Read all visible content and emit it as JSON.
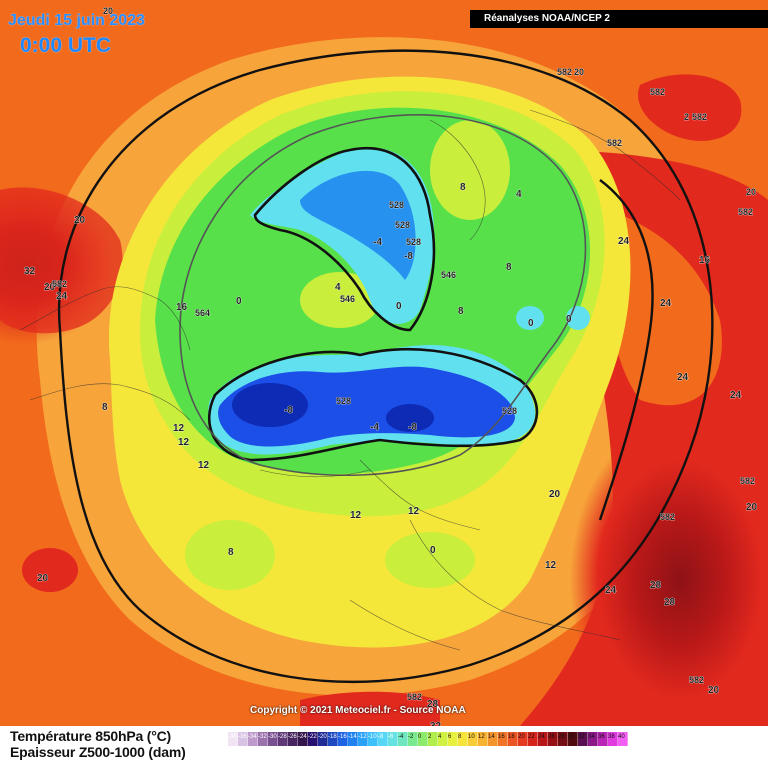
{
  "header": {
    "date": "Jeudi 15 juin 2023",
    "time": "0:00 UTC",
    "source": "Réanalyses NOAA/NCEP 2"
  },
  "footer": {
    "copyright": "Copyright © 2021 Meteociel.fr - Source NOAA",
    "legend_temperature": "Température 850hPa (°C)",
    "legend_thickness": "Epaisseur Z500-1000 (dam)"
  },
  "legend_scale": {
    "tick_labels": [
      "-40",
      "-38",
      "-36",
      "-34",
      "-32",
      "-30",
      "-28",
      "-26",
      "-24",
      "-22",
      "-20",
      "-18",
      "-16",
      "-14",
      "-12",
      "-10",
      "-8",
      "-6",
      "-4",
      "-2",
      "0",
      "2",
      "4",
      "6",
      "8",
      "10",
      "12",
      "14",
      "16",
      "18",
      "20",
      "22",
      "24",
      "26",
      "28",
      "30",
      "32",
      "34",
      "36",
      "38",
      "40"
    ]
  },
  "map_labels": {
    "n20_top": "20",
    "n582_top": "582",
    "n20_top_b": "20",
    "n582_ne": "582",
    "n2_582": "2",
    "n582_ne2": "582",
    "n582_ne3": "582",
    "n20_east": "20",
    "n582_east": "582",
    "n24_ne": "24",
    "n16_ne": "16",
    "n24_e1": "24",
    "n24_e2": "24",
    "n24_e3": "24",
    "n20_w": "20",
    "n32_w": "32",
    "n20_w2": "20",
    "n582_w": "582",
    "n24_w": "24",
    "n16_w": "16",
    "n564_w": "564",
    "n0_w": "0",
    "n8_w": "8",
    "n528_a": "528",
    "n528_b": "528",
    "n528_c": "528",
    "nm4_a": "-4",
    "nm8_a": "-8",
    "n546_a": "546",
    "n8_north": "8",
    "n4_north": "4",
    "n8_mid": "8",
    "n4_mid": "4",
    "n546_mid": "546",
    "n0_mid": "0",
    "n546_b": "546",
    "n8_c": "8",
    "n0_r": "0",
    "n0_r2": "0",
    "nm8_b": "-8",
    "n528_d": "528",
    "nm4_b": "-4",
    "nm8_c": "-8",
    "n528_e": "528",
    "n12_a": "12",
    "n12_b": "12",
    "n12_c": "12",
    "n12_d": "12",
    "n12_e": "12",
    "n12_f": "12",
    "n0_s": "0",
    "n8_s": "8",
    "n20_sw": "20",
    "n20_se": "20",
    "n582_se": "582",
    "n582_se2": "582",
    "n20_se2": "20",
    "n24_se": "24",
    "n28_se": "28",
    "n28_se2": "28",
    "n582_bottom": "582",
    "n28_bottom": "28",
    "n32_bottom": "32",
    "n582_br": "582",
    "n20_br": "20"
  },
  "colors": {
    "title": "#2a8cff",
    "deep_red": "#8e1216",
    "red": "#e2291e",
    "orange": "#f26a1b",
    "orange_light": "#f7a43a",
    "yellow": "#f5e73a",
    "yellow_green": "#c9ee3c",
    "green": "#58e04b",
    "cyan": "#61e1ef",
    "blue": "#1c4fe7",
    "dark_blue": "#0d2bb4"
  },
  "legend_colors": [
    "#ffffff",
    "#f0e4f4",
    "#d8c3e4",
    "#bd9ccd",
    "#9a73ad",
    "#7a5190",
    "#5e3877",
    "#47265f",
    "#35164b",
    "#28106f",
    "#1f2c96",
    "#1d48bf",
    "#1d63e3",
    "#1f82f0",
    "#2aa2f7",
    "#3ec1fb",
    "#57d7f7",
    "#66e2e3",
    "#6ee7c0",
    "#7ae88e",
    "#8eea6a",
    "#b1ed4d",
    "#d1f142",
    "#e7f03e",
    "#f6e33b",
    "#f8cc38",
    "#f7b232",
    "#f4942c",
    "#f07528",
    "#ec5523",
    "#e43a1f",
    "#d6241b",
    "#b91619",
    "#951116",
    "#710d13",
    "#500b0f",
    "#5a1050",
    "#8b1a88",
    "#b926b5",
    "#df3bdf",
    "#f25ef2"
  ]
}
